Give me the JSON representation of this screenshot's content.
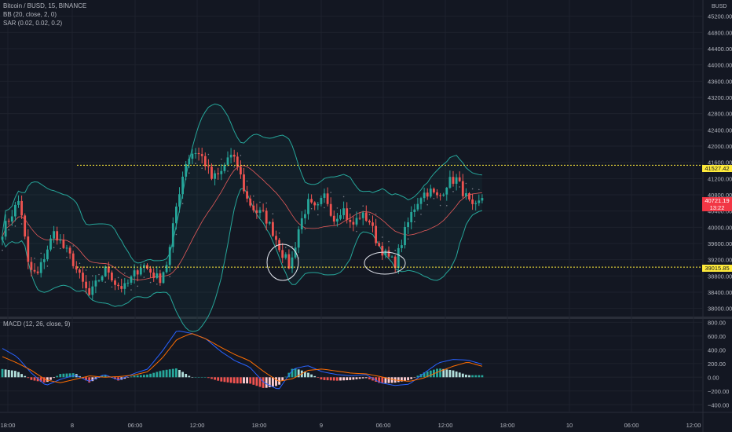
{
  "header": {
    "symbol_line": "Bitcoin / BUSD, 15, BINANCE",
    "bb_line": "BB (20, close, 2, 0)",
    "sar_line": "SAR (0.02, 0.02, 0.2)",
    "macd_line": "MACD (12, 26, close, 9)",
    "currency": "BUSD"
  },
  "price_axis": {
    "labels": [
      "45200.00",
      "44800.00",
      "44400.00",
      "44000.00",
      "43600.00",
      "43200.00",
      "42800.00",
      "42400.00",
      "42000.00",
      "41600.00",
      "41200.00",
      "40800.00",
      "40400.00",
      "40000.00",
      "39600.00",
      "39200.00",
      "38800.00",
      "38400.00",
      "38000.00"
    ],
    "resistance_label": "41527.42",
    "current_price_label": "40721.19",
    "countdown_label": "13:22",
    "support_label": "39015.85"
  },
  "macd_axis": {
    "labels": [
      "800.00",
      "600.00",
      "400.00",
      "200.00",
      "0.00",
      "−200.00",
      "−400.00"
    ]
  },
  "time_axis": {
    "labels": [
      "18:00",
      "8",
      "06:00",
      "12:00",
      "18:00",
      "9",
      "06:00",
      "12:00",
      "18:00",
      "10",
      "06:00",
      "12:00"
    ]
  },
  "colors": {
    "background": "#131722",
    "up": "#26a69a",
    "down": "#ef5350",
    "bb": "#26a69a",
    "sar": "#5d606b",
    "macd": "#2962ff",
    "signal": "#ff6d00",
    "hline": "#ffeb3b",
    "price_badge": "#f23645"
  },
  "chart_data": {
    "type": "candlestick",
    "interval": "15",
    "ylim": [
      37800,
      45600
    ],
    "horizontal_lines": [
      41527.42,
      39015.85
    ],
    "current_price": 40721.19,
    "anchor_prices": [
      39900,
      40300,
      40700,
      39000,
      38800,
      39400,
      39900,
      39500,
      39200,
      38700,
      38300,
      38700,
      39000,
      38600,
      38500,
      38800,
      39100,
      38900,
      38700,
      39200,
      40600,
      41600,
      41900,
      41700,
      41200,
      41300,
      41800,
      41500,
      40700,
      40400,
      40300,
      39900,
      39400,
      39000,
      40000,
      40600,
      40400,
      40800,
      40200,
      40500,
      40000,
      40300,
      40200,
      39600,
      39300,
      39100,
      39800,
      40400,
      40800,
      40900,
      40700,
      41100,
      41200,
      40800,
      40400,
      40700
    ],
    "macd_ylim": [
      -500,
      850
    ],
    "macd_anchors": [
      420,
      300,
      60,
      -120,
      -30,
      30,
      -60,
      40,
      -40,
      50,
      120,
      380,
      680,
      640,
      560,
      380,
      240,
      150,
      -80,
      -180,
      120,
      170,
      80,
      40,
      20,
      40,
      -80,
      -120,
      -100,
      60,
      210,
      260,
      250,
      190
    ],
    "signal_anchors": [
      300,
      210,
      100,
      -40,
      -80,
      -30,
      20,
      0,
      10,
      30,
      80,
      280,
      550,
      640,
      560,
      440,
      330,
      240,
      80,
      -60,
      -20,
      100,
      120,
      90,
      60,
      50,
      10,
      -40,
      -60,
      -10,
      80,
      160,
      220,
      160
    ]
  }
}
